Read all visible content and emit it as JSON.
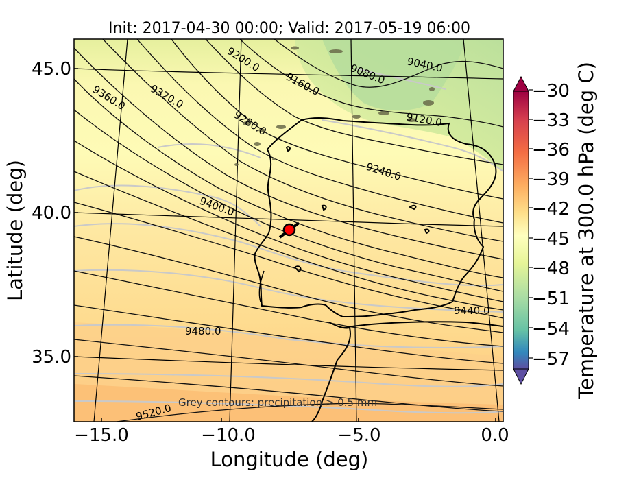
{
  "title": "Init: 2017-04-30 00:00; Valid: 2017-05-19 06:00",
  "x_label": "Longitude (deg)",
  "y_label": "Latitude (deg)",
  "colorbar_label": "Temperature at 300.0 hPa (deg C)",
  "colorbar_ticks": [
    "−30",
    "−33",
    "−36",
    "−39",
    "−42",
    "−45",
    "−48",
    "−51",
    "−54",
    "−57"
  ],
  "x_ticks": [
    "−15.0",
    "−10.0",
    "−5.0",
    "0.0"
  ],
  "y_ticks": [
    "45.0",
    "40.0",
    "35.0"
  ],
  "note": "Grey contours: precipitation > 0.5 mm",
  "contour_labels": [
    "9040.0",
    "9080.0",
    "9120.0",
    "9160.0",
    "9200.0",
    "9240.0",
    "9280.0",
    "9320.0",
    "9360.0",
    "9400.0",
    "9440.0",
    "9480.0",
    "9520.0"
  ],
  "marker": {
    "description": "storm location",
    "lon": -7.6,
    "lat": 39.4,
    "color": "#ff0000"
  },
  "colors": {
    "warm": "#fcbf76",
    "mid": "#fefcb8",
    "cool": "#c8e69c",
    "colormap": "Spectral_r"
  }
}
